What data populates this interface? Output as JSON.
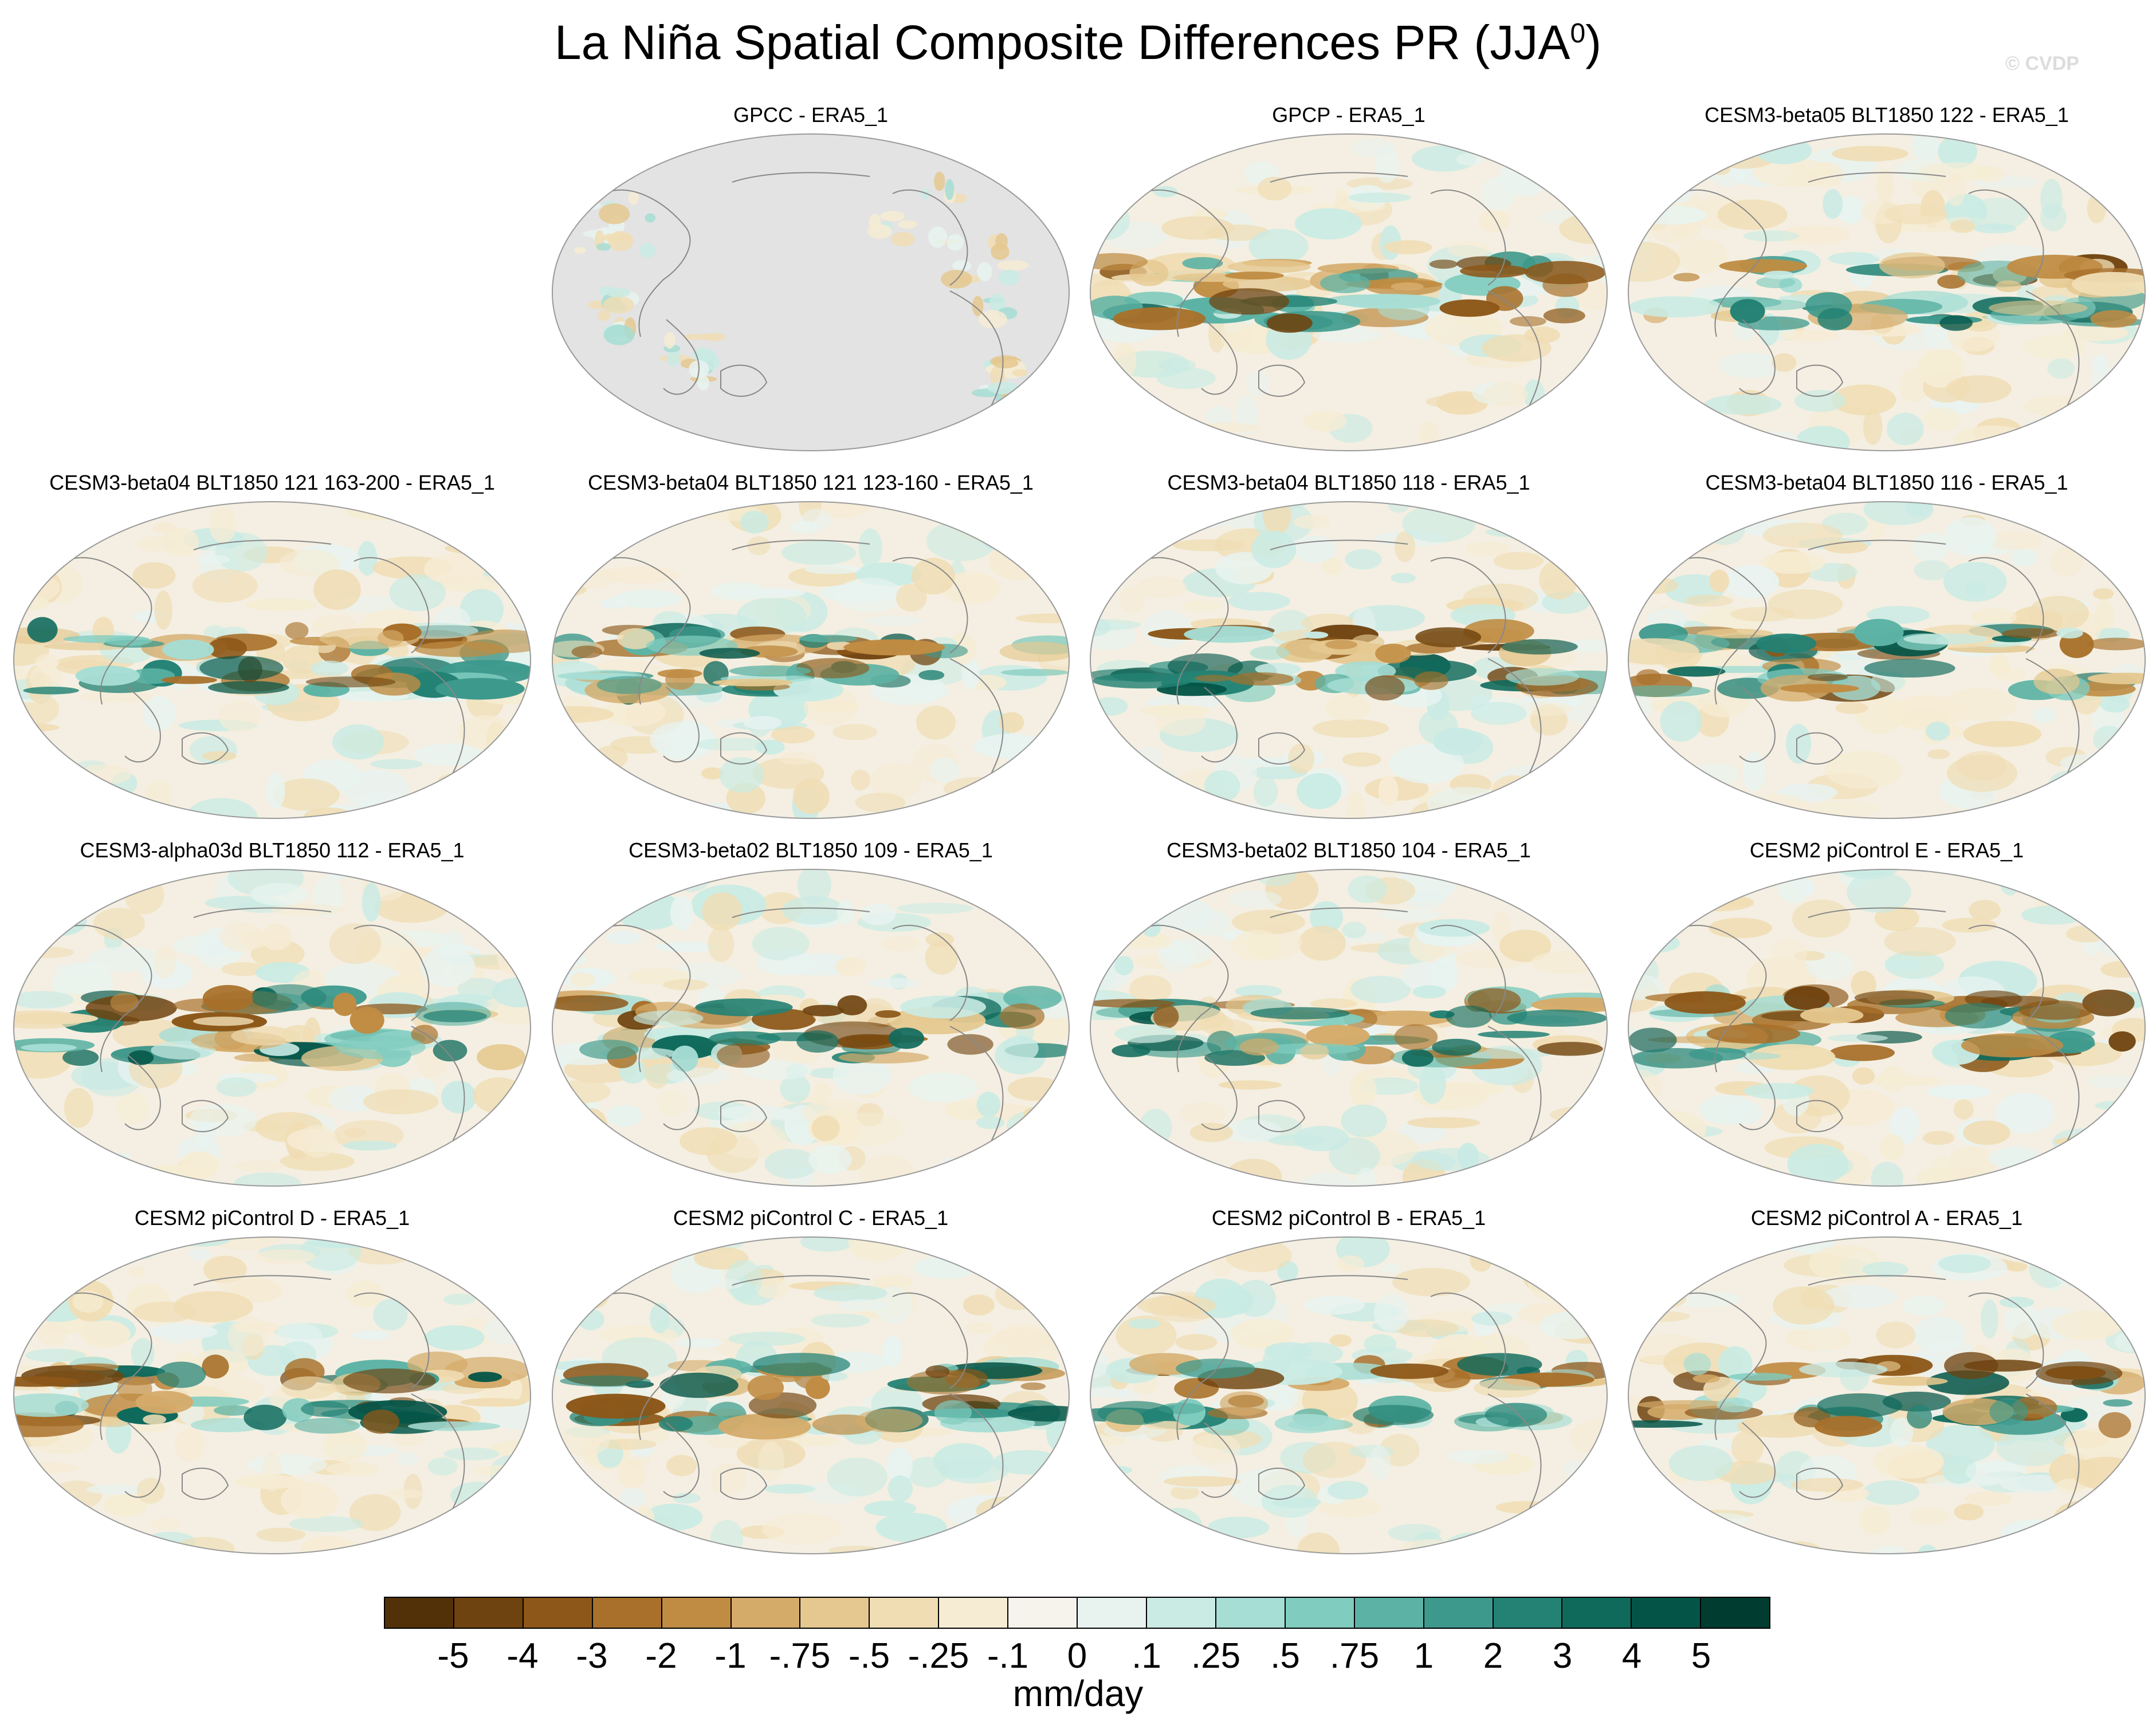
{
  "title": {
    "main": "La Niña Spatial Composite Differences PR (JJA",
    "sup": "0",
    "close": ")"
  },
  "watermark": "© CVDP",
  "panels": [
    {
      "title": "GPCC - ERA5_1",
      "masked": true
    },
    {
      "title": "GPCP - ERA5_1",
      "masked": false
    },
    {
      "title": "CESM3-beta05 BLT1850 122 - ERA5_1",
      "masked": false
    },
    {
      "title": "CESM3-beta04 BLT1850 121 163-200 - ERA5_1",
      "masked": false
    },
    {
      "title": "CESM3-beta04 BLT1850 121 123-160 - ERA5_1",
      "masked": false
    },
    {
      "title": "CESM3-beta04 BLT1850 118 - ERA5_1",
      "masked": false
    },
    {
      "title": "CESM3-beta04 BLT1850 116 - ERA5_1",
      "masked": false
    },
    {
      "title": "CESM3-alpha03d BLT1850 112 - ERA5_1",
      "masked": false
    },
    {
      "title": "CESM3-beta02 BLT1850 109 - ERA5_1",
      "masked": false
    },
    {
      "title": "CESM3-beta02 BLT1850 104 - ERA5_1",
      "masked": false
    },
    {
      "title": "CESM2 piControl E - ERA5_1",
      "masked": false
    },
    {
      "title": "CESM2 piControl D - ERA5_1",
      "masked": false
    },
    {
      "title": "CESM2 piControl C - ERA5_1",
      "masked": false
    },
    {
      "title": "CESM2 piControl B - ERA5_1",
      "masked": false
    },
    {
      "title": "CESM2 piControl A - ERA5_1",
      "masked": false
    }
  ],
  "colorbar": {
    "units": "mm/day",
    "labels": [
      "-5",
      "-4",
      "-3",
      "-2",
      "-1",
      "-.75",
      "-.5",
      "-.25",
      "-.1",
      "0",
      ".1",
      ".25",
      ".5",
      ".75",
      "1",
      "2",
      "3",
      "4",
      "5"
    ],
    "colors": [
      "#533108",
      "#6f430f",
      "#8c5718",
      "#a8702a",
      "#c08c43",
      "#d5ab6a",
      "#e5c88f",
      "#f0ddb4",
      "#f6ecd4",
      "#f5f3ec",
      "#e8f3f0",
      "#c9ebe4",
      "#a6ddd4",
      "#80ccbf",
      "#5cb3a5",
      "#3d998c",
      "#238274",
      "#0f6a5c",
      "#045548",
      "#003c30"
    ]
  },
  "map_colors": {
    "base": "#f4efe2",
    "mask": "#e3e3e3",
    "coast": "#888888",
    "outline": "#9a9a9a"
  }
}
